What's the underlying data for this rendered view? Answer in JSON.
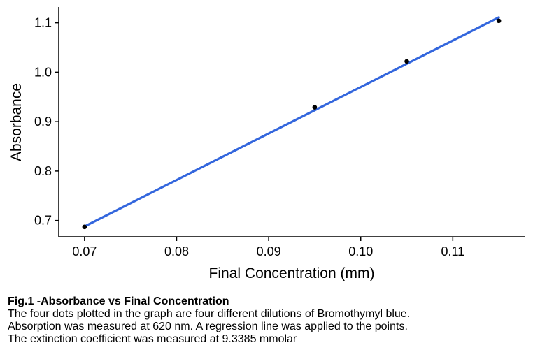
{
  "chart_data": {
    "type": "scatter",
    "title": "",
    "xlabel": "Final Concentration (mm)",
    "ylabel": "Absorbance",
    "xlim": [
      0.0672,
      0.1178
    ],
    "ylim": [
      0.667,
      1.132
    ],
    "x_ticks": [
      {
        "value": 0.07,
        "label": "0.07"
      },
      {
        "value": 0.08,
        "label": "0.08"
      },
      {
        "value": 0.09,
        "label": "0.09"
      },
      {
        "value": 0.1,
        "label": "0.10"
      },
      {
        "value": 0.11,
        "label": "0.11"
      }
    ],
    "y_ticks": [
      {
        "value": 0.7,
        "label": "0.7"
      },
      {
        "value": 0.8,
        "label": "0.8"
      },
      {
        "value": 0.9,
        "label": "0.9"
      },
      {
        "value": 1.0,
        "label": "1.0"
      },
      {
        "value": 1.1,
        "label": "1.1"
      }
    ],
    "points": [
      {
        "x": 0.07,
        "y": 0.687
      },
      {
        "x": 0.095,
        "y": 0.929
      },
      {
        "x": 0.105,
        "y": 1.022
      },
      {
        "x": 0.115,
        "y": 1.104
      }
    ],
    "regression_line": {
      "x": [
        0.07,
        0.115
      ],
      "y": [
        0.688,
        1.111
      ]
    },
    "grid": false,
    "colors": {
      "points": "#000000",
      "line": "#3366dd",
      "axis": "#000000"
    }
  },
  "caption": {
    "title": "Fig.1 -Absorbance vs Final Concentration",
    "lines": [
      "The four dots plotted in the graph are four different dilutions of Bromothymyl blue.",
      "Absorption was measured at 620 nm. A regression line was applied to the points.",
      "The extinction coefficient was measured at 9.3385 mmolar"
    ]
  }
}
